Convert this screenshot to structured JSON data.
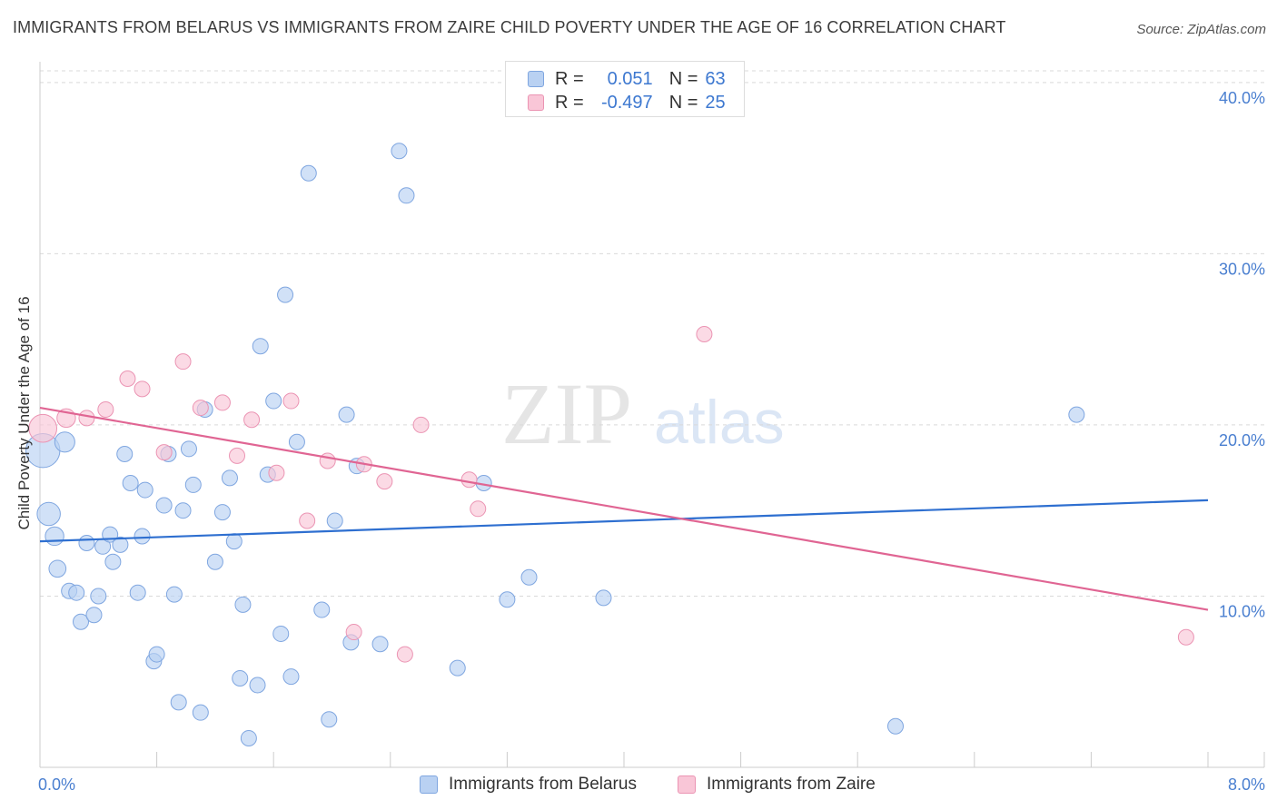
{
  "title": "IMMIGRANTS FROM BELARUS VS IMMIGRANTS FROM ZAIRE CHILD POVERTY UNDER THE AGE OF 16 CORRELATION CHART",
  "source": "Source: ZipAtlas.com",
  "watermark": {
    "zip": "ZIP",
    "atlas": "atlas"
  },
  "legend": {
    "r_label": "R =",
    "n_label": "N =",
    "belarus": {
      "r": "0.051",
      "n": "63"
    },
    "zaire": {
      "r": "-0.497",
      "n": "25"
    }
  },
  "colors": {
    "belarus_fill": "#b9d1f2",
    "belarus_stroke": "#7fa6e0",
    "belarus_line": "#2e6fd0",
    "zaire_fill": "#f9c6d7",
    "zaire_stroke": "#eb94b3",
    "zaire_line": "#e06593",
    "grid": "#d9d9d9",
    "tick_text": "#4a7fd0"
  },
  "chart_data": {
    "type": "scatter",
    "title": "IMMIGRANTS FROM BELARUS VS IMMIGRANTS FROM ZAIRE CHILD POVERTY UNDER THE AGE OF 16 CORRELATION CHART",
    "xlabel": "",
    "ylabel": "Child Poverty Under the Age of 16",
    "xlim": [
      0,
      8
    ],
    "ylim": [
      0,
      41
    ],
    "x_tick_labels": [
      "0.0%",
      "8.0%"
    ],
    "y_ticks": [
      10,
      20,
      30,
      40
    ],
    "y_tick_labels": [
      "10.0%",
      "20.0%",
      "30.0%",
      "40.0%"
    ],
    "grid": true,
    "legend_position": "top-center",
    "series": [
      {
        "name": "Immigrants from Belarus",
        "r": 0.051,
        "n": 63,
        "trend": {
          "x": [
            0,
            8
          ],
          "y": [
            13.2,
            15.6
          ]
        },
        "points": [
          [
            0.02,
            18.5,
            2.2
          ],
          [
            0.06,
            14.8,
            1.5
          ],
          [
            0.1,
            13.5,
            1.2
          ],
          [
            0.12,
            11.6,
            1.1
          ],
          [
            0.17,
            19.0,
            1.3
          ],
          [
            0.2,
            10.3,
            1.0
          ],
          [
            0.25,
            10.2,
            1.0
          ],
          [
            0.28,
            8.5,
            1.0
          ],
          [
            0.32,
            13.1,
            1.0
          ],
          [
            0.37,
            8.9,
            1.0
          ],
          [
            0.4,
            10.0,
            1.0
          ],
          [
            0.43,
            12.9,
            1.0
          ],
          [
            0.48,
            13.6,
            1.0
          ],
          [
            0.5,
            12.0,
            1.0
          ],
          [
            0.55,
            13.0,
            1.0
          ],
          [
            0.58,
            18.3,
            1.0
          ],
          [
            0.62,
            16.6,
            1.0
          ],
          [
            0.67,
            10.2,
            1.0
          ],
          [
            0.7,
            13.5,
            1.0
          ],
          [
            0.72,
            16.2,
            1.0
          ],
          [
            0.78,
            6.2,
            1.0
          ],
          [
            0.8,
            6.6,
            1.0
          ],
          [
            0.85,
            15.3,
            1.0
          ],
          [
            0.88,
            18.3,
            1.0
          ],
          [
            0.92,
            10.1,
            1.0
          ],
          [
            0.95,
            3.8,
            1.0
          ],
          [
            0.98,
            15.0,
            1.0
          ],
          [
            1.02,
            18.6,
            1.0
          ],
          [
            1.05,
            16.5,
            1.0
          ],
          [
            1.1,
            3.2,
            1.0
          ],
          [
            1.13,
            20.9,
            1.0
          ],
          [
            1.2,
            12.0,
            1.0
          ],
          [
            1.25,
            14.9,
            1.0
          ],
          [
            1.3,
            16.9,
            1.0
          ],
          [
            1.33,
            13.2,
            1.0
          ],
          [
            1.37,
            5.2,
            1.0
          ],
          [
            1.39,
            9.5,
            1.0
          ],
          [
            1.43,
            1.7,
            1.0
          ],
          [
            1.49,
            4.8,
            1.0
          ],
          [
            1.51,
            24.6,
            1.0
          ],
          [
            1.56,
            17.1,
            1.0
          ],
          [
            1.6,
            21.4,
            1.0
          ],
          [
            1.65,
            7.8,
            1.0
          ],
          [
            1.68,
            27.6,
            1.0
          ],
          [
            1.72,
            5.3,
            1.0
          ],
          [
            1.76,
            19.0,
            1.0
          ],
          [
            1.84,
            34.7,
            1.0
          ],
          [
            1.93,
            9.2,
            1.0
          ],
          [
            1.98,
            2.8,
            1.0
          ],
          [
            2.02,
            14.4,
            1.0
          ],
          [
            2.1,
            20.6,
            1.0
          ],
          [
            2.13,
            7.3,
            1.0
          ],
          [
            2.17,
            17.6,
            1.0
          ],
          [
            2.33,
            7.2,
            1.0
          ],
          [
            2.46,
            36.0,
            1.0
          ],
          [
            2.51,
            33.4,
            1.0
          ],
          [
            2.86,
            5.8,
            1.0
          ],
          [
            3.04,
            16.6,
            1.0
          ],
          [
            3.2,
            9.8,
            1.0
          ],
          [
            3.35,
            11.1,
            1.0
          ],
          [
            3.86,
            9.9,
            1.0
          ],
          [
            5.86,
            2.4,
            1.0
          ],
          [
            7.1,
            20.6,
            1.0
          ]
        ]
      },
      {
        "name": "Immigrants from Zaire",
        "r": -0.497,
        "n": 25,
        "trend": {
          "x": [
            0,
            8
          ],
          "y": [
            21.0,
            9.2
          ]
        },
        "points": [
          [
            0.02,
            19.8,
            1.8
          ],
          [
            0.18,
            20.4,
            1.2
          ],
          [
            0.32,
            20.4,
            1.0
          ],
          [
            0.45,
            20.9,
            1.0
          ],
          [
            0.6,
            22.7,
            1.0
          ],
          [
            0.7,
            22.1,
            1.0
          ],
          [
            0.85,
            18.4,
            1.0
          ],
          [
            0.98,
            23.7,
            1.0
          ],
          [
            1.1,
            21.0,
            1.0
          ],
          [
            1.25,
            21.3,
            1.0
          ],
          [
            1.35,
            18.2,
            1.0
          ],
          [
            1.45,
            20.3,
            1.0
          ],
          [
            1.62,
            17.2,
            1.0
          ],
          [
            1.72,
            21.4,
            1.0
          ],
          [
            1.83,
            14.4,
            1.0
          ],
          [
            1.97,
            17.9,
            1.0
          ],
          [
            2.15,
            7.9,
            1.0
          ],
          [
            2.22,
            17.7,
            1.0
          ],
          [
            2.36,
            16.7,
            1.0
          ],
          [
            2.5,
            6.6,
            1.0
          ],
          [
            2.61,
            20.0,
            1.0
          ],
          [
            2.94,
            16.8,
            1.0
          ],
          [
            3.0,
            15.1,
            1.0
          ],
          [
            4.55,
            25.3,
            1.0
          ],
          [
            7.85,
            7.6,
            1.0
          ]
        ]
      }
    ]
  },
  "bottom_legend": {
    "belarus": "Immigrants from Belarus",
    "zaire": "Immigrants from Zaire"
  }
}
